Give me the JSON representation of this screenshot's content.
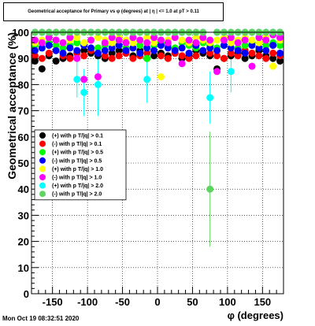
{
  "chart_data": {
    "type": "scatter",
    "title": "Geometrical acceptance for Primary vs φ (degrees) at |  η | <= 1.0 at pT > 0.11",
    "xlabel": "φ (degrees)",
    "ylabel": "Geometrical acceptance (%)",
    "xlim": [
      -180,
      180
    ],
    "ylim": [
      0,
      100
    ],
    "x_ticks": [
      -150,
      -100,
      -50,
      0,
      50,
      100,
      150
    ],
    "y_ticks": [
      0,
      10,
      20,
      30,
      40,
      50,
      60,
      70,
      80,
      90,
      100
    ],
    "grid": true,
    "legend_position": "left-middle",
    "series": [
      {
        "name": "(+) with p T/|q| > 0.1",
        "color": "#000000",
        "x": [
          -175,
          -165,
          -155,
          -145,
          -135,
          -125,
          -115,
          -105,
          -95,
          -85,
          -75,
          -65,
          -55,
          -45,
          -35,
          -25,
          -15,
          -5,
          5,
          15,
          25,
          35,
          45,
          55,
          65,
          75,
          85,
          95,
          105,
          115,
          125,
          135,
          145,
          155,
          165,
          175
        ],
        "y": [
          89,
          86,
          91,
          89,
          90,
          91,
          92,
          93,
          92,
          91,
          90,
          92,
          93,
          92,
          91,
          93,
          90,
          91,
          92,
          91,
          92,
          90,
          91,
          93,
          92,
          91,
          86,
          90,
          91,
          92,
          90,
          91,
          93,
          91,
          90,
          89
        ]
      },
      {
        "name": "(-) with p T/|q| > 0.1",
        "color": "#ff0000",
        "x": [
          -175,
          -165,
          -155,
          -145,
          -135,
          -125,
          -115,
          -105,
          -95,
          -85,
          -75,
          -65,
          -55,
          -45,
          -35,
          -25,
          -15,
          -5,
          5,
          15,
          25,
          35,
          45,
          55,
          65,
          75,
          85,
          95,
          105,
          115,
          125,
          135,
          145,
          155,
          165,
          175
        ],
        "y": [
          91,
          90,
          92,
          93,
          91,
          90,
          92,
          91,
          93,
          92,
          91,
          90,
          91,
          92,
          90,
          91,
          92,
          93,
          91,
          90,
          92,
          91,
          90,
          91,
          93,
          92,
          91,
          90,
          92,
          91,
          93,
          92,
          91,
          90,
          92,
          91
        ]
      },
      {
        "name": "(+) with p T/|q| > 0.5",
        "color": "#00ff00",
        "x": [
          -175,
          -165,
          -155,
          -145,
          -135,
          -125,
          -115,
          -105,
          -95,
          -85,
          -75,
          -65,
          -55,
          -45,
          -35,
          -25,
          -15,
          -5,
          5,
          15,
          25,
          35,
          45,
          55,
          65,
          75,
          85,
          95,
          105,
          115,
          125,
          135,
          145,
          155,
          165,
          175
        ],
        "y": [
          95,
          94,
          96,
          95,
          94,
          95,
          96,
          95,
          97,
          94,
          95,
          96,
          95,
          94,
          96,
          95,
          90,
          95,
          96,
          95,
          94,
          96,
          95,
          94,
          96,
          95,
          94,
          95,
          96,
          94,
          95,
          96,
          94,
          95,
          96,
          95
        ]
      },
      {
        "name": "(-) with p T/|q| > 0.5",
        "color": "#0000ff",
        "x": [
          -175,
          -165,
          -155,
          -145,
          -135,
          -125,
          -115,
          -105,
          -95,
          -85,
          -75,
          -65,
          -55,
          -45,
          -35,
          -25,
          -15,
          -5,
          5,
          15,
          25,
          35,
          45,
          55,
          65,
          75,
          85,
          95,
          105,
          115,
          125,
          135,
          145,
          155,
          165,
          175
        ],
        "y": [
          93,
          94,
          95,
          93,
          92,
          94,
          93,
          95,
          94,
          92,
          93,
          94,
          95,
          93,
          94,
          92,
          94,
          93,
          95,
          94,
          93,
          94,
          92,
          95,
          93,
          94,
          93,
          95,
          94,
          93,
          92,
          95,
          94,
          93,
          95,
          92
        ]
      },
      {
        "name": "(+) with p T/|q| > 1.0",
        "color": "#ffff00",
        "x": [
          -175,
          -165,
          -155,
          -145,
          -135,
          -125,
          -115,
          -105,
          -95,
          -85,
          -75,
          -65,
          -55,
          -45,
          -35,
          -25,
          -15,
          -5,
          5,
          15,
          25,
          35,
          45,
          55,
          65,
          75,
          85,
          95,
          105,
          115,
          125,
          135,
          145,
          155,
          165,
          175
        ],
        "y": [
          96,
          97,
          98,
          97,
          96,
          97,
          98,
          96,
          97,
          98,
          97,
          96,
          98,
          97,
          96,
          97,
          98,
          96,
          83,
          97,
          98,
          97,
          96,
          98,
          97,
          96,
          97,
          98,
          96,
          97,
          98,
          97,
          96,
          98,
          87,
          97
        ]
      },
      {
        "name": "(-) with p T/|q| > 1.0",
        "color": "#ff00ff",
        "x": [
          -175,
          -165,
          -155,
          -145,
          -135,
          -125,
          -115,
          -105,
          -95,
          -85,
          -75,
          -65,
          -55,
          -45,
          -35,
          -25,
          -15,
          -5,
          5,
          15,
          25,
          35,
          45,
          55,
          65,
          75,
          85,
          95,
          105,
          115,
          125,
          135,
          145,
          155,
          165,
          175
        ],
        "y": [
          97,
          96,
          98,
          97,
          96,
          98,
          90,
          82,
          97,
          83,
          96,
          98,
          97,
          96,
          98,
          97,
          96,
          98,
          97,
          96,
          98,
          88,
          97,
          96,
          98,
          97,
          85,
          97,
          98,
          96,
          97,
          87,
          98,
          97,
          99,
          98
        ]
      },
      {
        "name": "(+) with p T/|q| > 2.0",
        "color": "#00ffff",
        "x": [
          -175,
          -165,
          -155,
          -145,
          -135,
          -125,
          -115,
          -105,
          -95,
          -85,
          -75,
          -65,
          -55,
          -45,
          -35,
          -25,
          -15,
          -5,
          5,
          15,
          25,
          35,
          45,
          55,
          65,
          75,
          85,
          95,
          105,
          115,
          125,
          135,
          145,
          155,
          165,
          175
        ],
        "y": [
          100,
          100,
          100,
          100,
          100,
          100,
          82,
          77,
          100,
          80,
          100,
          100,
          100,
          100,
          100,
          100,
          82,
          100,
          100,
          100,
          100,
          100,
          100,
          100,
          100,
          75,
          100,
          100,
          85,
          100,
          100,
          100,
          100,
          100,
          100,
          100
        ],
        "yerr": [
          0,
          0,
          0,
          0,
          0,
          0,
          7,
          9,
          0,
          12,
          0,
          0,
          0,
          0,
          0,
          0,
          9,
          0,
          0,
          0,
          0,
          0,
          0,
          0,
          0,
          10,
          0,
          0,
          8,
          0,
          0,
          0,
          0,
          0,
          0,
          0
        ]
      },
      {
        "name": "(-) with p T/|q| > 2.0",
        "color": "#5fd35f",
        "x": [
          -175,
          -165,
          -155,
          -145,
          -135,
          -125,
          -115,
          -105,
          -95,
          -85,
          -75,
          -65,
          -55,
          -45,
          -35,
          -25,
          -15,
          -5,
          5,
          15,
          25,
          35,
          45,
          55,
          65,
          75,
          85,
          95,
          105,
          115,
          125,
          135,
          145,
          155,
          165,
          175
        ],
        "y": [
          100,
          100,
          100,
          100,
          100,
          100,
          100,
          100,
          100,
          100,
          100,
          100,
          100,
          100,
          100,
          100,
          100,
          100,
          100,
          100,
          100,
          100,
          100,
          100,
          100,
          40,
          100,
          100,
          100,
          100,
          100,
          100,
          100,
          100,
          100,
          100
        ],
        "yerr": [
          0,
          0,
          0,
          0,
          0,
          0,
          0,
          0,
          0,
          0,
          0,
          0,
          0,
          0,
          0,
          0,
          0,
          0,
          0,
          0,
          0,
          0,
          0,
          0,
          0,
          22,
          0,
          0,
          0,
          0,
          0,
          0,
          0,
          0,
          0,
          0
        ]
      }
    ]
  },
  "datestamp": "Mon Oct 19 08:32:51 2020"
}
